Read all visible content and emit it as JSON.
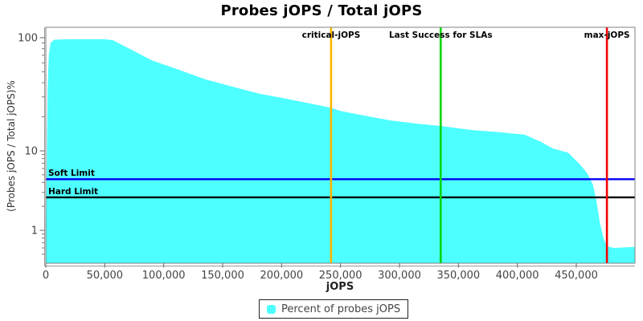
{
  "title": "Probes jOPS / Total jOPS",
  "legend": {
    "label": "Percent of probes jOPS",
    "marker_color": "#4dffff"
  },
  "chart_data": {
    "type": "area",
    "title": "Probes jOPS / Total jOPS",
    "xlabel": "jOPS",
    "ylabel": "(Probes jOPS / Total jOPS)%",
    "grid": false,
    "legend_position": "bottom",
    "x_axis": {
      "min": 0,
      "max": 500000,
      "ticks": [
        0,
        50000,
        100000,
        150000,
        200000,
        250000,
        300000,
        350000,
        400000,
        450000
      ],
      "tick_labels": [
        "0",
        "50,000",
        "100,000",
        "150,000",
        "200,000",
        "250,000",
        "300,000",
        "350,000",
        "400,000",
        "450,000"
      ]
    },
    "y_axis": {
      "scale": "log",
      "min": 0.4,
      "max": 110,
      "ticks": [
        1,
        10,
        100
      ],
      "tick_labels": [
        "1",
        "10",
        "100"
      ],
      "minor_ticks": [
        0.5,
        0.6,
        0.7,
        0.8,
        0.9,
        2,
        3,
        4,
        5,
        6,
        7,
        8,
        9,
        20,
        30,
        40,
        50,
        60,
        70,
        80,
        90
      ]
    },
    "series": [
      {
        "name": "Percent of probes jOPS",
        "color": "#4dffff",
        "points_jops_pct": [
          [
            0,
            0.45
          ],
          [
            1500,
            35
          ],
          [
            2500,
            70
          ],
          [
            4000,
            90
          ],
          [
            7000,
            96
          ],
          [
            20000,
            97
          ],
          [
            50000,
            97
          ],
          [
            57000,
            95
          ],
          [
            67000,
            84
          ],
          [
            90000,
            63
          ],
          [
            113000,
            52
          ],
          [
            135000,
            43
          ],
          [
            158000,
            37
          ],
          [
            181000,
            32
          ],
          [
            203000,
            29
          ],
          [
            226000,
            26
          ],
          [
            242000,
            24
          ],
          [
            250000,
            22.5
          ],
          [
            270000,
            20.5
          ],
          [
            293000,
            18.5
          ],
          [
            315000,
            17.4
          ],
          [
            335000,
            16.6
          ],
          [
            361000,
            15.3
          ],
          [
            385000,
            14.6
          ],
          [
            406000,
            13.9
          ],
          [
            420000,
            12
          ],
          [
            430000,
            10.5
          ],
          [
            443000,
            9.5
          ],
          [
            452000,
            7
          ],
          [
            459000,
            5.3
          ],
          [
            464000,
            3.8
          ],
          [
            467000,
            2.4
          ],
          [
            470000,
            1.25
          ],
          [
            473000,
            0.8
          ],
          [
            476000,
            0.63
          ],
          [
            482000,
            0.6
          ],
          [
            500000,
            0.62
          ]
        ]
      }
    ],
    "vlines": [
      {
        "label": "critical-jOPS",
        "jops": 242000,
        "color": "#ffb400"
      },
      {
        "label": "Last Success for SLAs",
        "jops": 335000,
        "color": "#00d800"
      },
      {
        "label": "max-jOPS",
        "jops": 476000,
        "color": "#f40000"
      }
    ],
    "hlines": [
      {
        "label": "Soft Limit",
        "pct": 4.4,
        "color": "#0000f0"
      },
      {
        "label": "Hard Limit",
        "pct": 2.6,
        "color": "#000000"
      }
    ]
  }
}
